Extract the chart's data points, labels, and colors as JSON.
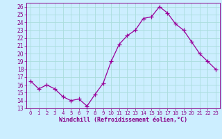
{
  "x": [
    0,
    1,
    2,
    3,
    4,
    5,
    6,
    7,
    8,
    9,
    10,
    11,
    12,
    13,
    14,
    15,
    16,
    17,
    18,
    19,
    20,
    21,
    22,
    23
  ],
  "y": [
    16.5,
    15.5,
    16.0,
    15.5,
    14.5,
    14.0,
    14.2,
    13.3,
    14.8,
    16.2,
    19.0,
    21.2,
    22.3,
    23.0,
    24.5,
    24.7,
    26.0,
    25.2,
    23.8,
    23.0,
    21.5,
    20.0,
    19.0,
    18.0
  ],
  "line_color": "#990099",
  "marker": "+",
  "marker_size": 4,
  "bg_color": "#cceeff",
  "grid_color": "#aadddd",
  "xlim": [
    -0.5,
    23.5
  ],
  "ylim": [
    13,
    26.5
  ],
  "yticks": [
    13,
    14,
    15,
    16,
    17,
    18,
    19,
    20,
    21,
    22,
    23,
    24,
    25,
    26
  ],
  "xticks": [
    0,
    1,
    2,
    3,
    4,
    5,
    6,
    7,
    8,
    9,
    10,
    11,
    12,
    13,
    14,
    15,
    16,
    17,
    18,
    19,
    20,
    21,
    22,
    23
  ],
  "xlabel": "Windchill (Refroidissement éolien,°C)",
  "tick_color": "#880088",
  "label_color": "#880088",
  "spine_color": "#880088",
  "ytick_fontsize": 5.5,
  "xtick_fontsize": 5.0,
  "xlabel_fontsize": 6.0
}
